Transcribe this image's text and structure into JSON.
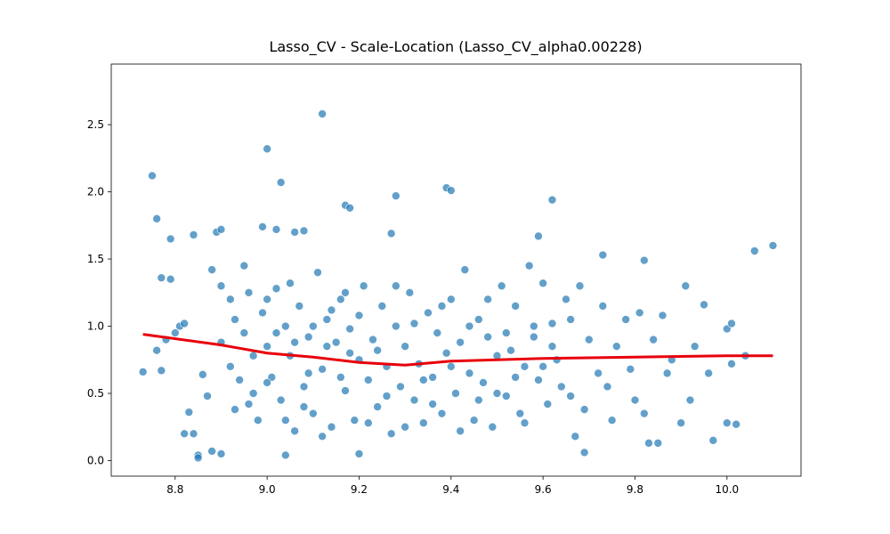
{
  "chart_data": {
    "type": "scatter",
    "title": "Lasso_CV - Scale-Location (Lasso_CV_alpha0.00228)",
    "xlim": [
      8.661,
      10.161
    ],
    "ylim": [
      -0.116,
      2.951
    ],
    "xticks": [
      8.8,
      {
        "value": 9,
        "label": "9.0"
      },
      9.2,
      9.4,
      9.6,
      9.8,
      {
        "value": 10,
        "label": "10.0"
      }
    ],
    "yticks": [
      {
        "value": 0,
        "label": "0.0"
      },
      0.5,
      {
        "value": 1,
        "label": "1.0"
      },
      1.5,
      {
        "value": 2,
        "label": "2.0"
      },
      2.5
    ],
    "points": {
      "color": "#1f77b4",
      "x": [
        9.12,
        9.0,
        8.75,
        9.03,
        9.39,
        9.4,
        9.28,
        9.62,
        9.17,
        9.18,
        8.76,
        8.79,
        8.84,
        8.89,
        8.9,
        8.99,
        9.02,
        9.06,
        9.08,
        9.27,
        9.59,
        10.06,
        10.1,
        9.73,
        9.82,
        8.73,
        8.85,
        8.85,
        9.04,
        9.2,
        9.69,
        9.97,
        9.83,
        9.85,
        10.0,
        10.02,
        8.88,
        8.9,
        8.77,
        8.79,
        8.8,
        8.81,
        8.82,
        8.82,
        8.84,
        8.83,
        8.76,
        8.77,
        8.78,
        8.86,
        8.88,
        8.9,
        8.92,
        8.93,
        8.95,
        8.96,
        8.97,
        8.98,
        8.99,
        9.0,
        9.01,
        9.02,
        9.03,
        9.04,
        9.05,
        9.06,
        9.07,
        9.08,
        9.09,
        9.1,
        9.11,
        9.12,
        9.13,
        9.14,
        9.15,
        9.16,
        9.17,
        9.18,
        9.19,
        9.2,
        9.21,
        9.22,
        9.23,
        9.24,
        9.25,
        9.26,
        9.27,
        9.28,
        9.29,
        9.3,
        9.31,
        9.32,
        9.33,
        9.34,
        9.35,
        9.36,
        9.37,
        9.38,
        9.39,
        9.4,
        9.41,
        9.42,
        9.43,
        9.44,
        9.45,
        9.46,
        9.47,
        9.48,
        9.49,
        9.5,
        9.51,
        9.52,
        9.53,
        9.54,
        9.55,
        9.56,
        9.57,
        9.58,
        9.59,
        9.6,
        9.61,
        9.62,
        9.63,
        9.65,
        9.66,
        9.67,
        9.68,
        9.69,
        9.7,
        9.72,
        9.73,
        9.74,
        9.75,
        9.76,
        9.78,
        9.79,
        9.8,
        9.81,
        9.82,
        9.84,
        9.86,
        9.87,
        9.88,
        9.9,
        9.91,
        9.92,
        9.93,
        9.95,
        9.96,
        10.0,
        10.01,
        10.01,
        10.04,
        8.92,
        8.94,
        8.96,
        9.0,
        9.02,
        9.04,
        9.06,
        9.08,
        9.1,
        9.12,
        9.14,
        9.16,
        9.18,
        9.2,
        9.22,
        9.24,
        9.26,
        9.28,
        9.3,
        9.32,
        9.34,
        9.36,
        9.38,
        9.4,
        9.42,
        9.44,
        9.46,
        9.48,
        9.5,
        9.52,
        9.54,
        9.56,
        9.58,
        9.6,
        9.62,
        9.64,
        9.66,
        8.87,
        8.9,
        8.93,
        8.95,
        8.97,
        9.0,
        9.05,
        9.09,
        9.13,
        9.17
      ],
      "y": [
        2.58,
        2.32,
        2.12,
        2.07,
        2.03,
        2.01,
        1.97,
        1.94,
        1.9,
        1.88,
        1.8,
        1.65,
        1.68,
        1.7,
        1.72,
        1.74,
        1.72,
        1.7,
        1.71,
        1.69,
        1.67,
        1.56,
        1.6,
        1.53,
        1.49,
        0.66,
        0.04,
        0.02,
        0.04,
        0.05,
        0.06,
        0.15,
        0.13,
        0.13,
        0.28,
        0.27,
        0.07,
        0.05,
        1.36,
        1.35,
        0.95,
        1.0,
        1.02,
        0.2,
        0.2,
        0.36,
        0.82,
        0.67,
        0.9,
        0.64,
        1.42,
        1.3,
        1.2,
        1.05,
        0.95,
        1.25,
        0.5,
        0.3,
        1.1,
        0.85,
        0.62,
        1.28,
        0.45,
        1.0,
        0.78,
        0.22,
        1.15,
        0.55,
        0.92,
        0.35,
        1.4,
        0.68,
        1.05,
        0.25,
        0.88,
        1.2,
        0.52,
        0.98,
        0.3,
        0.75,
        1.3,
        0.6,
        0.9,
        0.4,
        1.15,
        0.7,
        0.2,
        1.0,
        0.55,
        0.85,
        1.25,
        0.45,
        0.72,
        0.28,
        1.1,
        0.62,
        0.95,
        0.35,
        0.8,
        1.2,
        0.5,
        0.88,
        1.42,
        0.65,
        0.3,
        1.05,
        0.58,
        0.92,
        0.25,
        0.78,
        1.3,
        0.48,
        0.82,
        1.15,
        0.35,
        0.7,
        1.45,
        0.92,
        0.6,
        1.32,
        0.42,
        1.02,
        0.75,
        1.2,
        0.48,
        0.18,
        1.3,
        0.38,
        0.9,
        0.65,
        1.15,
        0.55,
        0.3,
        0.85,
        1.05,
        0.68,
        0.45,
        1.1,
        0.35,
        0.9,
        1.08,
        0.65,
        0.75,
        0.28,
        1.3,
        0.45,
        0.85,
        1.16,
        0.65,
        0.98,
        1.02,
        0.72,
        0.78,
        0.7,
        0.6,
        0.42,
        1.2,
        0.95,
        0.3,
        0.88,
        0.4,
        1.0,
        0.18,
        1.12,
        0.62,
        0.8,
        1.08,
        0.28,
        0.82,
        0.48,
        1.3,
        0.25,
        1.02,
        0.6,
        0.42,
        1.15,
        0.7,
        0.22,
        1.0,
        0.45,
        1.2,
        0.5,
        0.95,
        0.62,
        0.28,
        1.0,
        0.7,
        0.85,
        0.55,
        1.05,
        0.48,
        0.88,
        0.38,
        1.45,
        0.78,
        0.58,
        1.32,
        0.65,
        0.85,
        1.25
      ]
    },
    "trend": {
      "color": "#e8000b",
      "x": [
        8.73,
        8.9,
        9.0,
        9.1,
        9.2,
        9.3,
        9.4,
        9.5,
        9.6,
        9.8,
        10.0,
        10.1
      ],
      "y": [
        0.94,
        0.86,
        0.8,
        0.77,
        0.73,
        0.71,
        0.74,
        0.75,
        0.76,
        0.77,
        0.78,
        0.78
      ]
    }
  }
}
